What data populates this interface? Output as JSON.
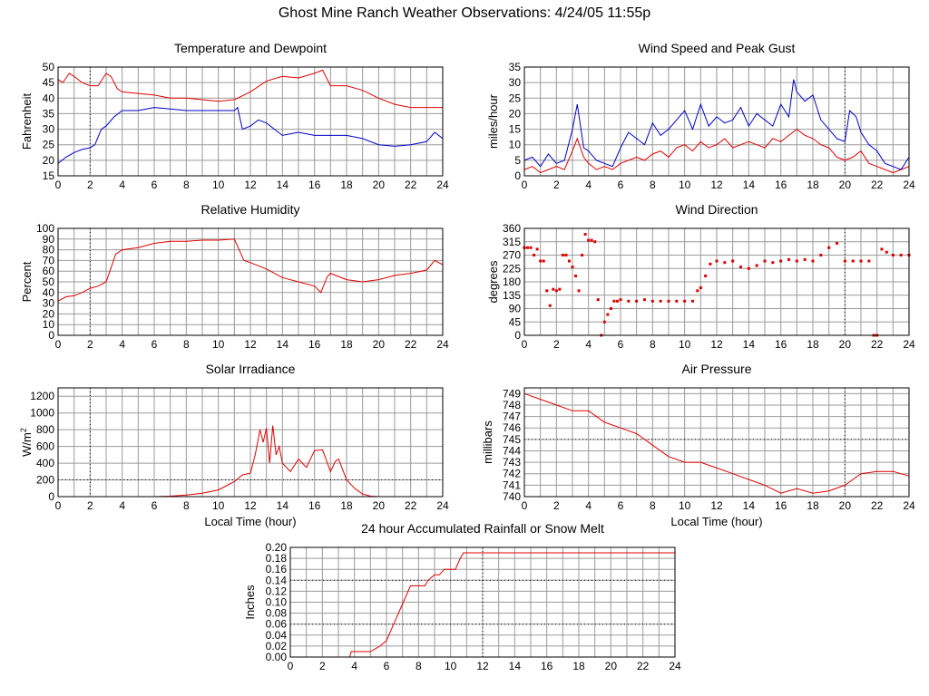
{
  "page_title": "Ghost Mine Ranch Weather Observations: 4/24/05 11:55p",
  "colors": {
    "red": "#e00000",
    "blue": "#0000cc",
    "grid": "#9a9a9a",
    "frame": "#000000"
  },
  "chart_data": [
    {
      "id": "temperature",
      "type": "line",
      "title": "Temperature and Dewpoint",
      "xlabel": "",
      "ylabel": "Fahrenheit",
      "xlim": [
        0,
        24
      ],
      "ylim": [
        15,
        50
      ],
      "xticks": [
        0,
        2,
        4,
        6,
        8,
        10,
        12,
        14,
        16,
        18,
        20,
        22,
        24
      ],
      "yticks": [
        15,
        20,
        25,
        30,
        35,
        40,
        45,
        50
      ],
      "reference_lines_x": [
        2
      ],
      "reference_lines_y": [],
      "series": [
        {
          "color": "#e00000",
          "x": [
            0,
            0.3,
            0.7,
            1,
            1.5,
            2,
            2.5,
            3,
            3.3,
            3.7,
            4,
            5,
            6,
            7,
            8,
            9,
            10,
            11,
            12,
            13,
            14,
            15,
            16,
            16.5,
            17,
            18,
            19,
            20,
            21,
            22,
            23,
            24
          ],
          "y": [
            46,
            45,
            48,
            47,
            45,
            44,
            44,
            48,
            47,
            43,
            42,
            41.5,
            41,
            40,
            40,
            39.5,
            39,
            39.5,
            42,
            45.5,
            47,
            46.5,
            48,
            49,
            44,
            44,
            42.5,
            40,
            38,
            37,
            37,
            37
          ]
        },
        {
          "color": "#0000cc",
          "x": [
            0,
            0.5,
            1,
            1.5,
            2,
            2.3,
            2.7,
            3,
            3.5,
            4,
            5,
            6,
            7,
            8,
            9,
            10,
            11,
            11.2,
            11.5,
            12,
            12.5,
            13,
            13.5,
            14,
            15,
            16,
            17,
            18,
            19,
            20,
            21,
            22,
            23,
            23.5,
            24
          ],
          "y": [
            19,
            21,
            22.5,
            23.5,
            24,
            25,
            30,
            31,
            34,
            36,
            36,
            37,
            36.5,
            36,
            36,
            36,
            36,
            37,
            30,
            31,
            33,
            32,
            30,
            28,
            29,
            28,
            28,
            28,
            27,
            25,
            24.5,
            25,
            26,
            29,
            27
          ]
        }
      ]
    },
    {
      "id": "wind-speed",
      "type": "line",
      "title": "Wind Speed and Peak Gust",
      "xlabel": "",
      "ylabel": "miles/hour",
      "xlim": [
        0,
        24
      ],
      "ylim": [
        0,
        35
      ],
      "xticks": [
        0,
        2,
        4,
        6,
        8,
        10,
        12,
        14,
        16,
        18,
        20,
        22,
        24
      ],
      "yticks": [
        0,
        5,
        10,
        15,
        20,
        25,
        30,
        35
      ],
      "reference_lines_x": [
        20
      ],
      "reference_lines_y": [],
      "series": [
        {
          "color": "#e00000",
          "x": [
            0,
            0.5,
            1,
            1.5,
            2,
            2.5,
            3,
            3.3,
            3.7,
            4,
            4.5,
            5,
            5.5,
            6,
            6.5,
            7,
            7.5,
            8,
            8.5,
            9,
            9.5,
            10,
            10.5,
            11,
            11.5,
            12,
            12.5,
            13,
            13.5,
            14,
            14.5,
            15,
            15.5,
            16,
            16.5,
            17,
            17.5,
            18,
            18.5,
            19,
            19.5,
            20,
            20.5,
            21,
            21.5,
            22,
            22.5,
            23,
            23.5,
            24
          ],
          "y": [
            2,
            3,
            1,
            2,
            3,
            2,
            8,
            12,
            6,
            4,
            2,
            3,
            2,
            4,
            5,
            6,
            5,
            7,
            8,
            6,
            9,
            10,
            8,
            11,
            9,
            10,
            12,
            9,
            10,
            11,
            10,
            9,
            12,
            11,
            13,
            15,
            13,
            12,
            10,
            9,
            6,
            5,
            6,
            8,
            4,
            3,
            2,
            1,
            2,
            3
          ]
        },
        {
          "color": "#0000cc",
          "x": [
            0,
            0.5,
            1,
            1.5,
            2,
            2.5,
            3,
            3.3,
            3.7,
            4,
            4.5,
            5,
            5.5,
            6,
            6.5,
            7,
            7.5,
            8,
            8.5,
            9,
            9.5,
            10,
            10.5,
            11,
            11.5,
            12,
            12.5,
            13,
            13.5,
            14,
            14.5,
            15,
            15.5,
            16,
            16.5,
            16.8,
            17,
            17.5,
            18,
            18.5,
            19,
            19.5,
            20,
            20.3,
            20.7,
            21,
            21.5,
            22,
            22.5,
            23,
            23.5,
            24
          ],
          "y": [
            5,
            6,
            3,
            7,
            4,
            5,
            15,
            23,
            9,
            8,
            5,
            4,
            3,
            9,
            14,
            12,
            10,
            17,
            13,
            15,
            18,
            21,
            15,
            23,
            16,
            19,
            17,
            18,
            22,
            16,
            20,
            18,
            16,
            23,
            19,
            31,
            27,
            24,
            26,
            18,
            15,
            12,
            11,
            21,
            19,
            14,
            10,
            8,
            4,
            3,
            2,
            6
          ]
        }
      ]
    },
    {
      "id": "humidity",
      "type": "line",
      "title": "Relative Humidity",
      "xlabel": "",
      "ylabel": "Percent",
      "xlim": [
        0,
        24
      ],
      "ylim": [
        0,
        100
      ],
      "xticks": [
        0,
        2,
        4,
        6,
        8,
        10,
        12,
        14,
        16,
        18,
        20,
        22,
        24
      ],
      "yticks": [
        0,
        10,
        20,
        30,
        40,
        50,
        60,
        70,
        80,
        90,
        100
      ],
      "reference_lines_x": [
        2
      ],
      "reference_lines_y": [],
      "series": [
        {
          "color": "#e00000",
          "x": [
            0,
            0.5,
            1,
            1.5,
            2,
            2.5,
            3,
            3.3,
            3.6,
            4,
            5,
            6,
            7,
            8,
            9,
            10,
            11,
            11.3,
            11.6,
            12,
            13,
            14,
            15,
            16,
            16.4,
            16.8,
            17,
            18,
            19,
            20,
            21,
            22,
            23,
            23.5,
            24
          ],
          "y": [
            32,
            36,
            37,
            40,
            44,
            46,
            50,
            63,
            76,
            80,
            82,
            86,
            88,
            88,
            89,
            89,
            90,
            80,
            70,
            68,
            62,
            54,
            50,
            46,
            40,
            55,
            58,
            52,
            50,
            52,
            56,
            58,
            61,
            70,
            66
          ]
        }
      ]
    },
    {
      "id": "wind-direction",
      "type": "scatter",
      "title": "Wind Direction",
      "xlabel": "",
      "ylabel": "degrees",
      "xlim": [
        0,
        24
      ],
      "ylim": [
        0,
        360
      ],
      "xticks": [
        0,
        2,
        4,
        6,
        8,
        10,
        12,
        14,
        16,
        18,
        20,
        22,
        24
      ],
      "yticks": [
        0,
        45,
        90,
        135,
        180,
        225,
        270,
        315,
        360
      ],
      "reference_lines_x": [
        20
      ],
      "reference_lines_y": [],
      "series": [
        {
          "color": "#e00000",
          "x": [
            0,
            0.2,
            0.4,
            0.6,
            0.8,
            1.0,
            1.2,
            1.4,
            1.6,
            1.8,
            2.0,
            2.2,
            2.4,
            2.6,
            2.8,
            3.0,
            3.2,
            3.4,
            3.6,
            3.8,
            4.0,
            4.2,
            4.4,
            4.6,
            4.8,
            5.0,
            5.2,
            5.4,
            5.6,
            5.8,
            6.0,
            6.5,
            7.0,
            7.5,
            8.0,
            8.5,
            9.0,
            9.5,
            10.0,
            10.5,
            10.8,
            11.0,
            11.3,
            11.6,
            12.0,
            12.5,
            13.0,
            13.5,
            14.0,
            14.5,
            15.0,
            15.5,
            16.0,
            16.5,
            17.0,
            17.5,
            18.0,
            18.5,
            19.0,
            19.5,
            20.0,
            20.5,
            21.0,
            21.5,
            21.8,
            22.0,
            22.3,
            22.6,
            23.0,
            23.5,
            24.0
          ],
          "y": [
            295,
            295,
            295,
            270,
            290,
            250,
            250,
            150,
            100,
            155,
            150,
            155,
            270,
            270,
            250,
            230,
            200,
            150,
            270,
            340,
            320,
            320,
            315,
            120,
            0,
            45,
            70,
            90,
            115,
            115,
            120,
            115,
            115,
            120,
            115,
            115,
            115,
            115,
            115,
            115,
            150,
            160,
            200,
            240,
            250,
            245,
            250,
            230,
            225,
            235,
            250,
            245,
            250,
            255,
            250,
            255,
            250,
            270,
            295,
            310,
            250,
            250,
            250,
            250,
            0,
            0,
            290,
            280,
            270,
            270,
            270
          ]
        }
      ]
    },
    {
      "id": "solar",
      "type": "line",
      "title": "Solar Irradiance",
      "xlabel": "Local Time (hour)",
      "ylabel": "W/m",
      "ylabel_sup": "2",
      "xlim": [
        0,
        24
      ],
      "ylim": [
        0,
        1300
      ],
      "xticks": [
        0,
        2,
        4,
        6,
        8,
        10,
        12,
        14,
        16,
        18,
        20,
        22,
        24
      ],
      "yticks": [
        0,
        200,
        400,
        600,
        800,
        1000,
        1200
      ],
      "reference_lines_x": [
        2
      ],
      "reference_lines_y": [
        200
      ],
      "series": [
        {
          "color": "#e00000",
          "x": [
            0,
            6,
            7,
            8,
            9,
            10,
            10.5,
            11,
            11.5,
            12,
            12.3,
            12.6,
            12.8,
            13,
            13.2,
            13.4,
            13.6,
            13.8,
            14,
            14.5,
            15,
            15.5,
            16,
            16.5,
            17,
            17.3,
            17.5,
            17.8,
            18,
            18.5,
            19,
            19.5,
            20,
            21,
            22,
            23,
            24
          ],
          "y": [
            0,
            0,
            5,
            20,
            40,
            80,
            130,
            180,
            260,
            280,
            500,
            800,
            650,
            820,
            400,
            850,
            500,
            600,
            400,
            300,
            450,
            350,
            550,
            560,
            300,
            420,
            450,
            300,
            200,
            100,
            30,
            5,
            0,
            0,
            0,
            0,
            0
          ]
        }
      ]
    },
    {
      "id": "pressure",
      "type": "line",
      "title": "Air Pressure",
      "xlabel": "Local Time (hour)",
      "ylabel": "millibars",
      "xlim": [
        0,
        24
      ],
      "ylim": [
        740,
        749.5
      ],
      "xticks": [
        0,
        2,
        4,
        6,
        8,
        10,
        12,
        14,
        16,
        18,
        20,
        22,
        24
      ],
      "yticks": [
        740,
        741,
        742,
        743,
        744,
        745,
        746,
        747,
        748,
        749
      ],
      "reference_lines_x": [
        20
      ],
      "reference_lines_y": [
        745
      ],
      "series": [
        {
          "color": "#e00000",
          "x": [
            0,
            1,
            2,
            3,
            4,
            5,
            6,
            7,
            8,
            9,
            10,
            11,
            12,
            13,
            14,
            15,
            16,
            17,
            18,
            19,
            20,
            21,
            22,
            23,
            24
          ],
          "y": [
            749,
            748.5,
            748,
            747.5,
            747.5,
            746.5,
            746,
            745.5,
            744.5,
            743.5,
            743,
            743,
            742.5,
            742,
            741.5,
            741,
            740.3,
            740.7,
            740.3,
            740.5,
            741,
            742,
            742.2,
            742.2,
            741.8
          ]
        }
      ]
    },
    {
      "id": "rainfall",
      "type": "line",
      "title": "24 hour Accumulated Rainfall or Snow Melt",
      "xlabel": "",
      "ylabel": "Inches",
      "xlim": [
        0,
        24
      ],
      "ylim": [
        0,
        0.2
      ],
      "xticks": [
        0,
        2,
        4,
        6,
        8,
        10,
        12,
        14,
        16,
        18,
        20,
        22,
        24
      ],
      "yticks": [
        0.0,
        0.02,
        0.04,
        0.06,
        0.08,
        0.1,
        0.12,
        0.14,
        0.16,
        0.18,
        0.2
      ],
      "ytick_labels": [
        "0.00",
        "0.02",
        "0.04",
        "0.06",
        "0.08",
        "0.10",
        "0.12",
        "0.14",
        "0.16",
        "0.18",
        "0.20"
      ],
      "reference_lines_x": [
        12
      ],
      "reference_lines_y": [
        0.06,
        0.14
      ],
      "series": [
        {
          "color": "#e00000",
          "x": [
            0,
            3.7,
            3.8,
            5.0,
            5.3,
            5.6,
            6.0,
            6.3,
            6.6,
            6.9,
            7.2,
            7.5,
            7.8,
            8.1,
            8.4,
            8.6,
            9.0,
            9.3,
            9.6,
            10.0,
            10.3,
            10.6,
            10.8,
            24
          ],
          "y": [
            0,
            0,
            0.01,
            0.01,
            0.015,
            0.02,
            0.03,
            0.05,
            0.07,
            0.09,
            0.11,
            0.13,
            0.13,
            0.13,
            0.13,
            0.14,
            0.15,
            0.15,
            0.16,
            0.16,
            0.16,
            0.18,
            0.19,
            0.19
          ]
        }
      ]
    }
  ]
}
